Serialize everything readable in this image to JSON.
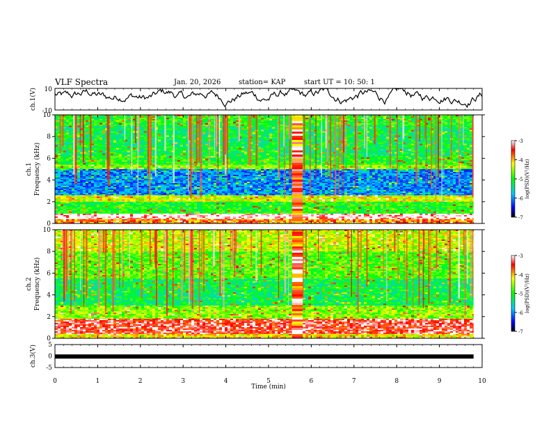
{
  "header": {
    "title": "VLF Spectra",
    "date": "Jan. 20, 2026",
    "station": "station= KAP",
    "start": "start  UT =   10: 50: 1"
  },
  "chart_data": [
    {
      "type": "line",
      "name": "ch1-waveform",
      "ylabel": "ch.1(V)",
      "ylim": [
        -10,
        10
      ],
      "ytick_labels": [
        "10",
        "-10"
      ],
      "xlim": [
        0,
        10
      ]
    },
    {
      "type": "heatmap",
      "name": "ch1-spectrogram",
      "ylabel_line1": "ch.1",
      "ylabel_line2": "Frequency (kHz)",
      "ylim": [
        0,
        10
      ],
      "ytick_labels": [
        "0",
        "2",
        "4",
        "6",
        "8",
        "10"
      ],
      "xlim": [
        0,
        9.8
      ],
      "colorbar": {
        "label": "log(PSD)(V²/Hz)",
        "range": [
          -7,
          -3
        ],
        "tick_labels": [
          "-3",
          "-4",
          "-5",
          "-6",
          "-7"
        ]
      },
      "bands": [
        {
          "from": 9.0,
          "to": 10.0,
          "value": -5.0
        },
        {
          "from": 6.2,
          "to": 9.0,
          "value": -5.2
        },
        {
          "from": 5.4,
          "to": 6.2,
          "value": -5.0
        },
        {
          "from": 5.0,
          "to": 5.4,
          "value": -4.6
        },
        {
          "from": 2.6,
          "to": 5.0,
          "value": -6.0
        },
        {
          "from": 2.0,
          "to": 2.6,
          "value": -4.3
        },
        {
          "from": 0.9,
          "to": 2.0,
          "value": -5.0
        },
        {
          "from": 0.4,
          "to": 0.9,
          "value": -3.0
        },
        {
          "from": 0.0,
          "to": 0.4,
          "value": -3.8
        }
      ],
      "burst": {
        "from_min": 5.55,
        "to_min": 5.8,
        "value": -3.5
      }
    },
    {
      "type": "heatmap",
      "name": "ch2-spectrogram",
      "ylabel_line1": "ch.2",
      "ylabel_line2": "Frequency (kHz)",
      "ylim": [
        0,
        10
      ],
      "ytick_labels": [
        "0",
        "2",
        "4",
        "6",
        "8",
        "10"
      ],
      "xlim": [
        0,
        9.8
      ],
      "colorbar": {
        "label": "log(PSD)(V²/Hz)",
        "range": [
          -7,
          -3
        ],
        "tick_labels": [
          "-3",
          "-4",
          "-5",
          "-6",
          "-7"
        ]
      },
      "bands": [
        {
          "from": 8.0,
          "to": 10.0,
          "value": -4.4
        },
        {
          "from": 5.5,
          "to": 8.0,
          "value": -4.8
        },
        {
          "from": 3.0,
          "to": 5.5,
          "value": -5.2
        },
        {
          "from": 1.8,
          "to": 3.0,
          "value": -4.6
        },
        {
          "from": 0.4,
          "to": 1.8,
          "value": -3.4
        },
        {
          "from": 0.0,
          "to": 0.4,
          "value": -4.2
        }
      ],
      "burst": {
        "from_min": 5.55,
        "to_min": 5.8,
        "value": -3.5
      }
    },
    {
      "type": "line",
      "name": "ch3-waveform",
      "ylabel": "ch.3(V)",
      "ylim": [
        -5,
        5
      ],
      "ytick_labels": [
        "5",
        "0",
        "-5"
      ],
      "level": -0.2,
      "xlim": [
        0,
        9.8
      ]
    }
  ],
  "x_axis": {
    "label": "Time (min)",
    "ticks": [
      "0",
      "1",
      "2",
      "3",
      "4",
      "5",
      "6",
      "7",
      "8",
      "9",
      "10"
    ],
    "range": [
      0,
      10
    ]
  }
}
